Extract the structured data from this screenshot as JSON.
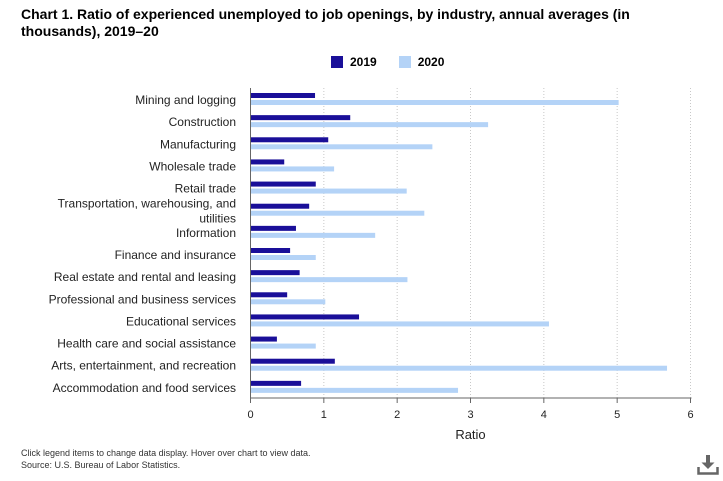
{
  "title": "Chart 1. Ratio of experienced unemployed to job openings, by industry, annual averages (in thousands), 2019–20",
  "footnote": "Click legend items to change data display. Hover over chart to view data.",
  "source": "Source: U.S. Bureau of Labor Statistics.",
  "download_icon": "download-icon",
  "chart_data": {
    "type": "bar",
    "orientation": "horizontal",
    "categories": [
      "Mining and logging",
      "Construction",
      "Manufacturing",
      "Wholesale trade",
      "Retail trade",
      "Transportation, warehousing, and utilities",
      "Information",
      "Finance and insurance",
      "Real estate and rental and leasing",
      "Professional and business services",
      "Educational services",
      "Health care and social assistance",
      "Arts, entertainment, and recreation",
      "Accommodation and food services"
    ],
    "category_lines": [
      [
        "Mining and logging"
      ],
      [
        "Construction"
      ],
      [
        "Manufacturing"
      ],
      [
        "Wholesale trade"
      ],
      [
        "Retail trade"
      ],
      [
        "Transportation, warehousing, and",
        "utilities"
      ],
      [
        "Information"
      ],
      [
        "Finance and insurance"
      ],
      [
        "Real estate and rental and leasing"
      ],
      [
        "Professional and business services"
      ],
      [
        "Educational services"
      ],
      [
        "Health care and social assistance"
      ],
      [
        "Arts, entertainment, and recreation"
      ],
      [
        "Accommodation and food services"
      ]
    ],
    "series": [
      {
        "name": "2019",
        "color": "#1a0f99",
        "values": [
          0.88,
          1.36,
          1.06,
          0.46,
          0.89,
          0.8,
          0.62,
          0.54,
          0.67,
          0.5,
          1.48,
          0.36,
          1.15,
          0.69
        ]
      },
      {
        "name": "2020",
        "color": "#b4d3f7",
        "values": [
          5.02,
          3.24,
          2.48,
          1.14,
          2.13,
          2.37,
          1.7,
          0.89,
          2.14,
          1.02,
          4.07,
          0.89,
          5.68,
          2.83
        ]
      }
    ],
    "xlabel": "Ratio",
    "ylabel": "",
    "xlim": [
      0,
      6
    ],
    "xticks": [
      0,
      1,
      2,
      3,
      4,
      5,
      6
    ],
    "grid": true,
    "legend_position": "top"
  }
}
